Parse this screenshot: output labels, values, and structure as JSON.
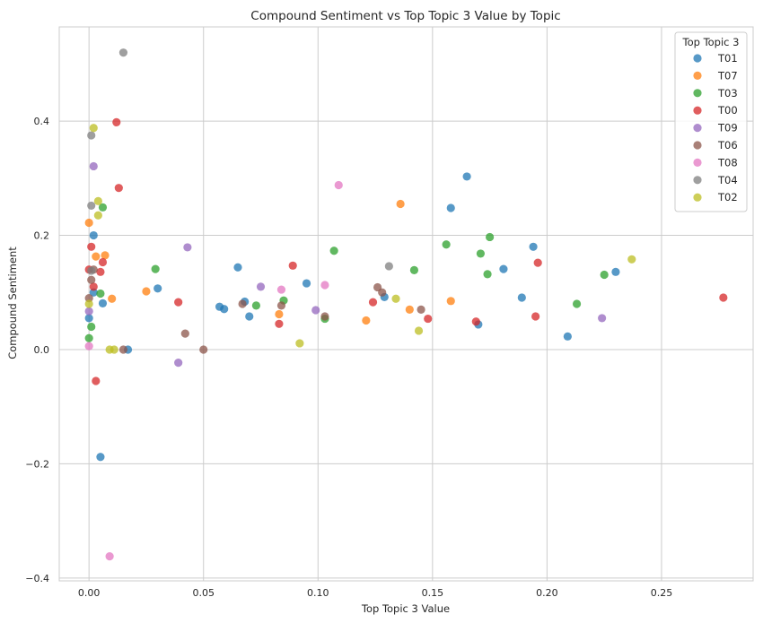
{
  "chart_data": {
    "type": "scatter",
    "title": "Compound Sentiment vs Top Topic 3 Value by Topic",
    "xlabel": "Top Topic 3 Value",
    "ylabel": "Compound Sentiment",
    "xlim": [
      -0.013,
      0.29
    ],
    "ylim": [
      -0.405,
      0.565
    ],
    "xticks": [
      0.0,
      0.05,
      0.1,
      0.15,
      0.2,
      0.25
    ],
    "xtick_labels": [
      "0.00",
      "0.05",
      "0.10",
      "0.15",
      "0.20",
      "0.25"
    ],
    "yticks": [
      -0.4,
      -0.2,
      0.0,
      0.2,
      0.4
    ],
    "ytick_labels": [
      "−0.4",
      "−0.2",
      "0.0",
      "0.2",
      "0.4"
    ],
    "grid": true,
    "legend_title": "Top Topic 3",
    "legend_position": "top-right",
    "series": [
      {
        "name": "T01",
        "color": "#1f77b4",
        "points": [
          [
            0.0,
            0.055
          ],
          [
            0.002,
            0.2
          ],
          [
            0.002,
            0.1
          ],
          [
            0.006,
            0.081
          ],
          [
            0.005,
            -0.188
          ],
          [
            0.017,
            0.0
          ],
          [
            0.03,
            0.107
          ],
          [
            0.057,
            0.075
          ],
          [
            0.059,
            0.071
          ],
          [
            0.065,
            0.144
          ],
          [
            0.068,
            0.084
          ],
          [
            0.07,
            0.058
          ],
          [
            0.095,
            0.116
          ],
          [
            0.129,
            0.092
          ],
          [
            0.158,
            0.248
          ],
          [
            0.165,
            0.303
          ],
          [
            0.17,
            0.044
          ],
          [
            0.181,
            0.141
          ],
          [
            0.189,
            0.091
          ],
          [
            0.194,
            0.18
          ],
          [
            0.209,
            0.023
          ],
          [
            0.23,
            0.136
          ]
        ]
      },
      {
        "name": "T07",
        "color": "#ff7f0e",
        "points": [
          [
            0.0,
            0.222
          ],
          [
            0.003,
            0.163
          ],
          [
            0.007,
            0.165
          ],
          [
            0.01,
            0.089
          ],
          [
            0.025,
            0.102
          ],
          [
            0.083,
            0.062
          ],
          [
            0.121,
            0.051
          ],
          [
            0.136,
            0.255
          ],
          [
            0.14,
            0.07
          ],
          [
            0.158,
            0.085
          ]
        ]
      },
      {
        "name": "T03",
        "color": "#2ca02c",
        "points": [
          [
            0.0,
            0.02
          ],
          [
            0.001,
            0.04
          ],
          [
            0.005,
            0.098
          ],
          [
            0.006,
            0.249
          ],
          [
            0.029,
            0.141
          ],
          [
            0.073,
            0.077
          ],
          [
            0.085,
            0.086
          ],
          [
            0.103,
            0.054
          ],
          [
            0.107,
            0.173
          ],
          [
            0.142,
            0.139
          ],
          [
            0.156,
            0.184
          ],
          [
            0.171,
            0.168
          ],
          [
            0.174,
            0.132
          ],
          [
            0.175,
            0.197
          ],
          [
            0.213,
            0.08
          ],
          [
            0.225,
            0.131
          ]
        ]
      },
      {
        "name": "T00",
        "color": "#d62728",
        "points": [
          [
            0.001,
            0.18
          ],
          [
            0.0,
            0.14
          ],
          [
            0.002,
            0.11
          ],
          [
            0.003,
            -0.055
          ],
          [
            0.005,
            0.136
          ],
          [
            0.006,
            0.153
          ],
          [
            0.012,
            0.398
          ],
          [
            0.013,
            0.283
          ],
          [
            0.039,
            0.083
          ],
          [
            0.083,
            0.045
          ],
          [
            0.089,
            0.147
          ],
          [
            0.124,
            0.083
          ],
          [
            0.148,
            0.054
          ],
          [
            0.169,
            0.049
          ],
          [
            0.195,
            0.058
          ],
          [
            0.196,
            0.152
          ],
          [
            0.277,
            0.091
          ]
        ]
      },
      {
        "name": "T09",
        "color": "#9467bd",
        "points": [
          [
            0.0,
            0.067
          ],
          [
            0.002,
            0.321
          ],
          [
            0.039,
            -0.023
          ],
          [
            0.043,
            0.179
          ],
          [
            0.075,
            0.11
          ],
          [
            0.099,
            0.069
          ],
          [
            0.224,
            0.055
          ]
        ]
      },
      {
        "name": "T06",
        "color": "#8c564b",
        "points": [
          [
            0.0,
            0.09
          ],
          [
            0.001,
            0.122
          ],
          [
            0.002,
            0.14
          ],
          [
            0.015,
            0.0
          ],
          [
            0.042,
            0.028
          ],
          [
            0.05,
            0.0
          ],
          [
            0.067,
            0.08
          ],
          [
            0.084,
            0.077
          ],
          [
            0.103,
            0.058
          ],
          [
            0.126,
            0.109
          ],
          [
            0.128,
            0.1
          ],
          [
            0.145,
            0.07
          ]
        ]
      },
      {
        "name": "T08",
        "color": "#e377c2",
        "points": [
          [
            0.0,
            0.006
          ],
          [
            0.009,
            -0.362
          ],
          [
            0.084,
            0.105
          ],
          [
            0.103,
            0.113
          ],
          [
            0.109,
            0.288
          ]
        ]
      },
      {
        "name": "T04",
        "color": "#7f7f7f",
        "points": [
          [
            0.001,
            0.375
          ],
          [
            0.001,
            0.252
          ],
          [
            0.001,
            0.138
          ],
          [
            0.015,
            0.52
          ],
          [
            0.131,
            0.146
          ]
        ]
      },
      {
        "name": "T02",
        "color": "#bcbd22",
        "points": [
          [
            0.0,
            0.08
          ],
          [
            0.002,
            0.388
          ],
          [
            0.004,
            0.26
          ],
          [
            0.004,
            0.235
          ],
          [
            0.009,
            0.0
          ],
          [
            0.011,
            0.0
          ],
          [
            0.092,
            0.011
          ],
          [
            0.134,
            0.089
          ],
          [
            0.144,
            0.033
          ],
          [
            0.237,
            0.158
          ]
        ]
      }
    ]
  }
}
